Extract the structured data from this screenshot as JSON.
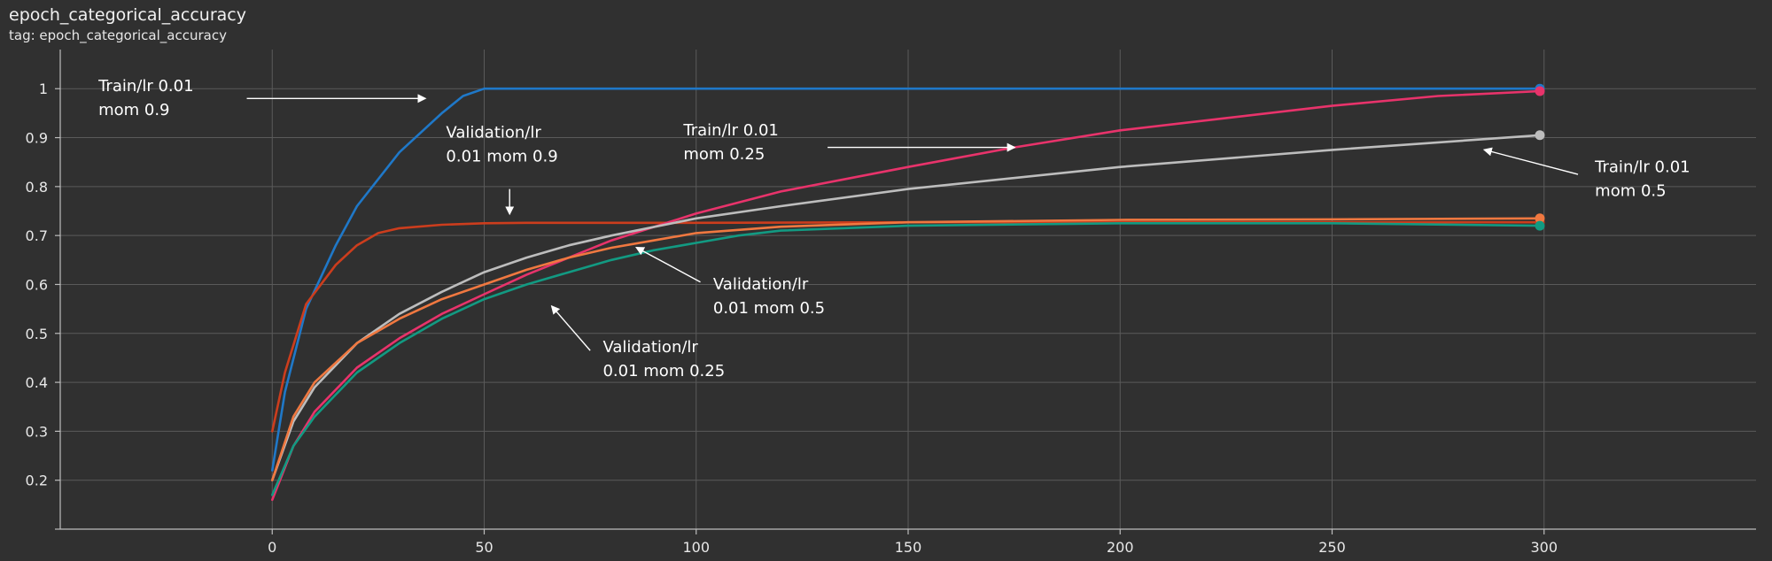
{
  "header": {
    "title": "epoch_categorical_accuracy",
    "tag": "tag: epoch_categorical_accuracy"
  },
  "chart_data": {
    "type": "line",
    "x_ticks": [
      "0",
      "50",
      "100",
      "150",
      "200",
      "250",
      "300"
    ],
    "y_ticks": [
      "0.2",
      "0.3",
      "0.4",
      "0.5",
      "0.6",
      "0.7",
      "0.8",
      "0.9",
      "1"
    ],
    "xlim": [
      -50,
      350
    ],
    "ylim": [
      0.1,
      1.08
    ],
    "grid": true,
    "series": [
      {
        "color": "#1f78c8",
        "x": [
          0,
          3,
          8,
          15,
          20,
          30,
          40,
          45,
          50,
          60,
          100,
          150,
          200,
          250,
          299
        ],
        "y": [
          0.22,
          0.38,
          0.55,
          0.68,
          0.76,
          0.87,
          0.95,
          0.985,
          1.0,
          1.0,
          1.0,
          1.0,
          1.0,
          1.0,
          1.0
        ]
      },
      {
        "color": "#cc3d1d",
        "x": [
          0,
          3,
          8,
          15,
          20,
          25,
          30,
          40,
          50,
          60,
          100,
          150,
          200,
          250,
          299
        ],
        "y": [
          0.3,
          0.42,
          0.56,
          0.64,
          0.68,
          0.705,
          0.715,
          0.722,
          0.725,
          0.726,
          0.726,
          0.727,
          0.727,
          0.727,
          0.727
        ]
      },
      {
        "color": "#e8336b",
        "x": [
          0,
          5,
          10,
          20,
          30,
          40,
          50,
          60,
          70,
          80,
          100,
          120,
          150,
          175,
          200,
          225,
          250,
          275,
          299
        ],
        "y": [
          0.16,
          0.27,
          0.34,
          0.43,
          0.49,
          0.54,
          0.58,
          0.62,
          0.655,
          0.69,
          0.745,
          0.79,
          0.84,
          0.88,
          0.915,
          0.94,
          0.965,
          0.985,
          0.995
        ]
      },
      {
        "color": "#bdbdbd",
        "x": [
          0,
          5,
          10,
          20,
          30,
          40,
          50,
          60,
          70,
          80,
          100,
          120,
          150,
          200,
          250,
          299
        ],
        "y": [
          0.2,
          0.32,
          0.39,
          0.48,
          0.54,
          0.585,
          0.625,
          0.655,
          0.68,
          0.7,
          0.735,
          0.76,
          0.795,
          0.84,
          0.875,
          0.905
        ]
      },
      {
        "color": "#f07840",
        "x": [
          0,
          5,
          10,
          20,
          30,
          40,
          50,
          60,
          70,
          80,
          90,
          100,
          120,
          150,
          200,
          250,
          299
        ],
        "y": [
          0.2,
          0.33,
          0.4,
          0.48,
          0.53,
          0.57,
          0.6,
          0.63,
          0.655,
          0.675,
          0.69,
          0.705,
          0.718,
          0.727,
          0.732,
          0.733,
          0.735
        ]
      },
      {
        "color": "#129a82",
        "x": [
          0,
          5,
          10,
          20,
          30,
          40,
          50,
          60,
          70,
          80,
          90,
          100,
          110,
          120,
          150,
          200,
          250,
          299
        ],
        "y": [
          0.17,
          0.27,
          0.33,
          0.42,
          0.48,
          0.53,
          0.57,
          0.6,
          0.625,
          0.65,
          0.67,
          0.685,
          0.7,
          0.71,
          0.72,
          0.725,
          0.725,
          0.72
        ]
      }
    ],
    "annotations": [
      {
        "lines": [
          "Train/lr 0.01",
          "mom 0.9"
        ],
        "label_at": [
          -41,
          0.995
        ],
        "arrow_from": [
          -6,
          0.98
        ],
        "arrow_to": [
          36,
          0.98
        ]
      },
      {
        "lines": [
          "Validation/lr",
          "0.01 mom 0.9"
        ],
        "label_at": [
          41,
          0.9
        ],
        "arrow_from": [
          56,
          0.795
        ],
        "arrow_to": [
          56,
          0.745
        ]
      },
      {
        "lines": [
          "Train/lr 0.01",
          "mom 0.25"
        ],
        "label_at": [
          97,
          0.905
        ],
        "arrow_from": [
          131,
          0.88
        ],
        "arrow_to": [
          175,
          0.88
        ]
      },
      {
        "lines": [
          "Train/lr 0.01",
          "mom 0.5"
        ],
        "label_at": [
          312,
          0.83
        ],
        "arrow_from": [
          308,
          0.825
        ],
        "arrow_to": [
          286,
          0.875
        ]
      },
      {
        "lines": [
          "Validation/lr",
          "0.01 mom 0.5"
        ],
        "label_at": [
          104,
          0.59
        ],
        "arrow_from": [
          101,
          0.605
        ],
        "arrow_to": [
          86,
          0.675
        ]
      },
      {
        "lines": [
          "Validation/lr",
          "0.01 mom 0.25"
        ],
        "label_at": [
          78,
          0.462
        ],
        "arrow_from": [
          75,
          0.465
        ],
        "arrow_to": [
          66,
          0.555
        ]
      }
    ]
  }
}
